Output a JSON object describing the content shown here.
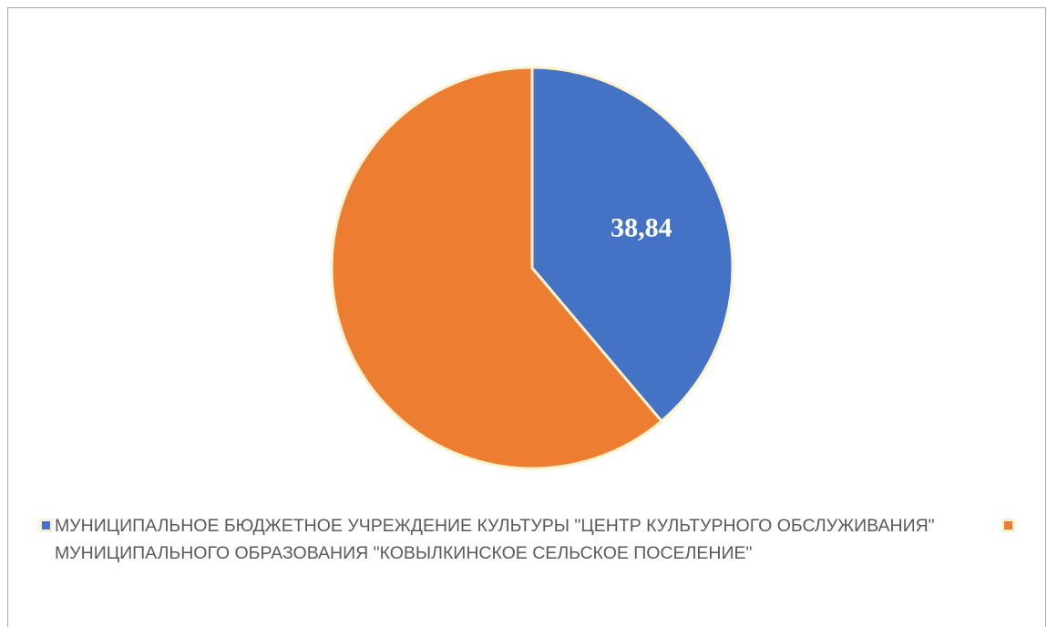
{
  "chart_data": {
    "type": "pie",
    "slices": [
      {
        "name": "МУНИЦИПАЛЬНОЕ БЮДЖЕТНОЕ УЧРЕЖДЕНИЕ КУЛЬТУРЫ \"ЦЕНТР КУЛЬТУРНОГО ОБСЛУЖИВАНИЯ\" МУНИЦИПАЛЬНОГО ОБРАЗОВАНИЯ \"КОВЫЛКИНСКОЕ СЕЛЬСКОЕ ПОСЕЛЕНИЕ\"",
        "value": 38.84,
        "label": "38,84",
        "color": "#4472c4"
      },
      {
        "name": "",
        "value": 61.16,
        "label": "",
        "color": "#ed7d31"
      }
    ],
    "slice_border_color": "#fff2cc",
    "label_color": "#ffffff",
    "legend_position": "bottom"
  }
}
